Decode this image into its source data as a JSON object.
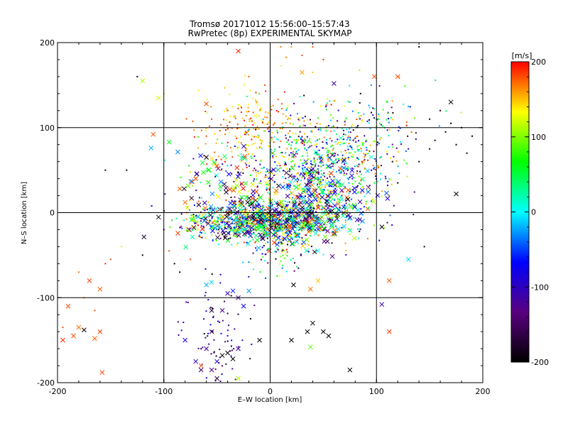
{
  "chart_data": {
    "type": "scatter",
    "title": "Tromsø 20171012 15:56:00–15:57:43",
    "subtitle": "RwPretec (8p) EXPERIMENTAL SKYMAP",
    "xlabel": "E–W location [km]",
    "ylabel": "N–S location [km]",
    "xlim": [
      -200,
      200
    ],
    "ylim": [
      -200,
      200
    ],
    "xticks": [
      -200,
      -100,
      0,
      100,
      200
    ],
    "yticks": [
      -200,
      -100,
      0,
      100,
      200
    ],
    "grid": true,
    "colorbar": {
      "label": "[m/s]",
      "min": -200,
      "max": 200,
      "ticks": [
        200,
        100,
        0,
        -100,
        -200
      ],
      "colormap": "black-purple-blue-cyan-green-yellow-red",
      "stops": [
        "#000000",
        "#5a0080",
        "#0000ff",
        "#00ffff",
        "#00ff00",
        "#ffff00",
        "#ff0000"
      ]
    },
    "marker_types": [
      "dot",
      "x"
    ],
    "points": [
      {
        "x": -185,
        "y": -145,
        "v": 180,
        "m": "x"
      },
      {
        "x": -195,
        "y": -150,
        "v": 190,
        "m": "x"
      },
      {
        "x": -180,
        "y": -135,
        "v": 170,
        "m": "x"
      },
      {
        "x": -160,
        "y": -140,
        "v": 185,
        "m": "x"
      },
      {
        "x": -165,
        "y": -148,
        "v": 175,
        "m": "x"
      },
      {
        "x": -158,
        "y": -188,
        "v": 180,
        "m": "x"
      },
      {
        "x": -175,
        "y": -138,
        "v": -200,
        "m": "x"
      },
      {
        "x": -180,
        "y": -70,
        "v": 170,
        "m": "dot"
      },
      {
        "x": -170,
        "y": -80,
        "v": 185,
        "m": "x"
      },
      {
        "x": -160,
        "y": -90,
        "v": 175,
        "m": "x"
      },
      {
        "x": -155,
        "y": -60,
        "v": 190,
        "m": "dot"
      },
      {
        "x": -190,
        "y": -110,
        "v": 180,
        "m": "x"
      },
      {
        "x": -175,
        "y": -100,
        "v": 170,
        "m": "dot"
      },
      {
        "x": -120,
        "y": 155,
        "v": 110,
        "m": "x"
      },
      {
        "x": -105,
        "y": 135,
        "v": 120,
        "m": "x"
      },
      {
        "x": -110,
        "y": 92,
        "v": 180,
        "m": "x"
      },
      {
        "x": -112,
        "y": 76,
        "v": -20,
        "m": "x"
      },
      {
        "x": -95,
        "y": 83,
        "v": 60,
        "m": "x"
      },
      {
        "x": -125,
        "y": 160,
        "v": -200,
        "m": "dot"
      },
      {
        "x": -155,
        "y": 50,
        "v": -200,
        "m": "dot"
      },
      {
        "x": -135,
        "y": 50,
        "v": -200,
        "m": "dot"
      },
      {
        "x": -60,
        "y": 128,
        "v": 180,
        "m": "x"
      },
      {
        "x": -30,
        "y": 190,
        "v": 190,
        "m": "x"
      },
      {
        "x": -60,
        "y": 65,
        "v": -200,
        "m": "x"
      },
      {
        "x": -50,
        "y": 55,
        "v": 180,
        "m": "x"
      },
      {
        "x": -70,
        "y": 40,
        "v": 180,
        "m": "x"
      },
      {
        "x": -85,
        "y": 28,
        "v": 175,
        "m": "x"
      },
      {
        "x": -80,
        "y": 12,
        "v": 170,
        "m": "x"
      },
      {
        "x": -60,
        "y": -85,
        "v": -20,
        "m": "x"
      },
      {
        "x": -55,
        "y": -82,
        "v": -10,
        "m": "x"
      },
      {
        "x": -40,
        "y": -95,
        "v": -110,
        "m": "x"
      },
      {
        "x": -35,
        "y": -92,
        "v": -60,
        "m": "x"
      },
      {
        "x": -30,
        "y": -100,
        "v": -120,
        "m": "x"
      },
      {
        "x": -25,
        "y": -110,
        "v": -70,
        "m": "x"
      },
      {
        "x": -20,
        "y": -92,
        "v": -30,
        "m": "x"
      },
      {
        "x": -45,
        "y": -115,
        "v": -130,
        "m": "x"
      },
      {
        "x": -55,
        "y": -115,
        "v": -180,
        "m": "x"
      },
      {
        "x": -55,
        "y": -140,
        "v": -160,
        "m": "x"
      },
      {
        "x": -60,
        "y": -160,
        "v": -120,
        "m": "x"
      },
      {
        "x": -50,
        "y": -175,
        "v": -90,
        "m": "x"
      },
      {
        "x": -45,
        "y": -168,
        "v": -200,
        "m": "x"
      },
      {
        "x": -40,
        "y": -165,
        "v": -200,
        "m": "x"
      },
      {
        "x": -70,
        "y": -175,
        "v": -110,
        "m": "x"
      },
      {
        "x": -65,
        "y": -185,
        "v": -150,
        "m": "x"
      },
      {
        "x": -55,
        "y": -185,
        "v": -130,
        "m": "x"
      },
      {
        "x": -50,
        "y": -195,
        "v": -170,
        "m": "x"
      },
      {
        "x": -30,
        "y": -160,
        "v": -110,
        "m": "x"
      },
      {
        "x": -35,
        "y": -172,
        "v": -200,
        "m": "x"
      },
      {
        "x": -30,
        "y": -195,
        "v": 110,
        "m": "x"
      },
      {
        "x": -10,
        "y": -150,
        "v": -200,
        "m": "x"
      },
      {
        "x": -80,
        "y": -150,
        "v": -90,
        "m": "x"
      },
      {
        "x": -65,
        "y": -180,
        "v": 180,
        "m": "x"
      },
      {
        "x": 40,
        "y": -130,
        "v": -200,
        "m": "x"
      },
      {
        "x": 50,
        "y": -140,
        "v": -200,
        "m": "x"
      },
      {
        "x": 55,
        "y": -145,
        "v": -200,
        "m": "x"
      },
      {
        "x": 35,
        "y": -140,
        "v": -200,
        "m": "x"
      },
      {
        "x": 38,
        "y": -158,
        "v": 90,
        "m": "x"
      },
      {
        "x": 75,
        "y": -185,
        "v": -200,
        "m": "x"
      },
      {
        "x": 20,
        "y": -150,
        "v": -200,
        "m": "x"
      },
      {
        "x": 22,
        "y": -85,
        "v": -200,
        "m": "x"
      },
      {
        "x": 38,
        "y": -90,
        "v": 170,
        "m": "x"
      },
      {
        "x": 45,
        "y": -80,
        "v": 150,
        "m": "x"
      },
      {
        "x": 112,
        "y": -80,
        "v": 180,
        "m": "x"
      },
      {
        "x": 112,
        "y": -140,
        "v": 185,
        "m": "x"
      },
      {
        "x": 105,
        "y": -108,
        "v": -110,
        "m": "x"
      },
      {
        "x": 130,
        "y": -55,
        "v": -10,
        "m": "x"
      },
      {
        "x": 175,
        "y": 22,
        "v": -200,
        "m": "x"
      },
      {
        "x": 170,
        "y": 130,
        "v": -200,
        "m": "x"
      },
      {
        "x": 60,
        "y": 152,
        "v": -110,
        "m": "x"
      },
      {
        "x": 30,
        "y": 165,
        "v": 160,
        "m": "x"
      },
      {
        "x": 98,
        "y": 160,
        "v": 180,
        "m": "x"
      },
      {
        "x": 120,
        "y": 160,
        "v": 180,
        "m": "x"
      },
      {
        "x": 30,
        "y": 185,
        "v": 180,
        "m": "dot"
      },
      {
        "x": 40,
        "y": 165,
        "v": 150,
        "m": "dot"
      },
      {
        "x": 75,
        "y": 130,
        "v": -20,
        "m": "dot"
      },
      {
        "x": 85,
        "y": 140,
        "v": -200,
        "m": "dot"
      },
      {
        "x": 95,
        "y": 150,
        "v": -30,
        "m": "dot"
      },
      {
        "x": 110,
        "y": 130,
        "v": 60,
        "m": "dot"
      },
      {
        "x": 130,
        "y": 125,
        "v": -20,
        "m": "dot"
      },
      {
        "x": 100,
        "y": 110,
        "v": -30,
        "m": "dot"
      },
      {
        "x": 140,
        "y": 195,
        "v": -200,
        "m": "dot"
      },
      {
        "x": 40,
        "y": 195,
        "v": 180,
        "m": "dot"
      },
      {
        "x": 50,
        "y": 180,
        "v": 190,
        "m": "dot"
      },
      {
        "x": 10,
        "y": 195,
        "v": 170,
        "m": "dot"
      },
      {
        "x": 20,
        "y": 195,
        "v": 160,
        "m": "dot"
      },
      {
        "x": -5,
        "y": 150,
        "v": 180,
        "m": "dot"
      },
      {
        "x": -20,
        "y": 160,
        "v": 180,
        "m": "dot"
      },
      {
        "x": -40,
        "y": 120,
        "v": 180,
        "m": "dot"
      },
      {
        "x": -100,
        "y": 140,
        "v": 110,
        "m": "dot"
      },
      {
        "x": -60,
        "y": 90,
        "v": 180,
        "m": "dot"
      },
      {
        "x": -55,
        "y": 110,
        "v": 180,
        "m": "dot"
      },
      {
        "x": 150,
        "y": 110,
        "v": -200,
        "m": "dot"
      },
      {
        "x": 165,
        "y": 95,
        "v": -200,
        "m": "dot"
      },
      {
        "x": 180,
        "y": 100,
        "v": -200,
        "m": "dot"
      },
      {
        "x": 190,
        "y": 90,
        "v": -200,
        "m": "dot"
      },
      {
        "x": 160,
        "y": 120,
        "v": -200,
        "m": "dot"
      },
      {
        "x": 175,
        "y": 80,
        "v": -200,
        "m": "dot"
      },
      {
        "x": 185,
        "y": 70,
        "v": -200,
        "m": "dot"
      },
      {
        "x": 155,
        "y": 85,
        "v": -200,
        "m": "dot"
      },
      {
        "x": 170,
        "y": 105,
        "v": -200,
        "m": "dot"
      },
      {
        "x": 140,
        "y": 60,
        "v": -200,
        "m": "dot"
      },
      {
        "x": 145,
        "y": -40,
        "v": -200,
        "m": "dot"
      },
      {
        "x": 150,
        "y": 75,
        "v": -200,
        "m": "dot"
      },
      {
        "x": 130,
        "y": 75,
        "v": -110,
        "m": "dot"
      },
      {
        "x": 115,
        "y": 60,
        "v": -200,
        "m": "dot"
      },
      {
        "x": 112,
        "y": 20,
        "v": 180,
        "m": "dot"
      },
      {
        "x": 120,
        "y": 35,
        "v": -200,
        "m": "dot"
      },
      {
        "x": 60,
        "y": 200,
        "v": -110,
        "m": "dot"
      },
      {
        "x": -195,
        "y": -135,
        "v": 180,
        "m": "dot"
      },
      {
        "x": -150,
        "y": -55,
        "v": 180,
        "m": "dot"
      },
      {
        "x": -165,
        "y": -115,
        "v": 180,
        "m": "dot"
      },
      {
        "x": -140,
        "y": -40,
        "v": 120,
        "m": "dot"
      },
      {
        "x": -100,
        "y": -20,
        "v": -200,
        "m": "dot"
      },
      {
        "x": -95,
        "y": -45,
        "v": 180,
        "m": "dot"
      },
      {
        "x": -90,
        "y": -60,
        "v": -200,
        "m": "dot"
      },
      {
        "x": -85,
        "y": -70,
        "v": -200,
        "m": "dot"
      },
      {
        "x": -120,
        "y": -50,
        "v": -200,
        "m": "dot"
      },
      {
        "x": -75,
        "y": -55,
        "v": 180,
        "m": "dot"
      }
    ],
    "clusters": [
      {
        "cx": 0,
        "cy": -10,
        "sx": 35,
        "sy": 12,
        "n": 700,
        "vmin": -200,
        "vmax": 200,
        "m": "x"
      },
      {
        "cx": 45,
        "cy": 15,
        "sx": 25,
        "sy": 25,
        "n": 400,
        "vmin": -200,
        "vmax": 200,
        "m": "x"
      },
      {
        "cx": 30,
        "cy": 60,
        "sx": 30,
        "sy": 25,
        "n": 300,
        "vmin": -150,
        "vmax": 200,
        "m": "dot"
      },
      {
        "cx": -15,
        "cy": 100,
        "sx": 25,
        "sy": 25,
        "n": 200,
        "vmin": 120,
        "vmax": 200,
        "m": "dot"
      },
      {
        "cx": 75,
        "cy": 60,
        "sx": 25,
        "sy": 30,
        "n": 250,
        "vmin": -150,
        "vmax": 200,
        "m": "dot"
      },
      {
        "cx": -40,
        "cy": 30,
        "sx": 25,
        "sy": 25,
        "n": 150,
        "vmin": -200,
        "vmax": 200,
        "m": "x"
      },
      {
        "cx": 5,
        "cy": -40,
        "sx": 15,
        "sy": 20,
        "n": 100,
        "vmin": -200,
        "vmax": 200,
        "m": "dot"
      },
      {
        "cx": -40,
        "cy": -10,
        "sx": 25,
        "sy": 10,
        "n": 150,
        "vmin": -200,
        "vmax": 200,
        "m": "dot"
      },
      {
        "cx": -50,
        "cy": -150,
        "sx": 15,
        "sy": 30,
        "n": 80,
        "vmin": -200,
        "vmax": -60,
        "m": "dot"
      },
      {
        "cx": 80,
        "cy": 100,
        "sx": 40,
        "sy": 25,
        "n": 150,
        "vmin": -200,
        "vmax": 200,
        "m": "dot"
      }
    ]
  }
}
